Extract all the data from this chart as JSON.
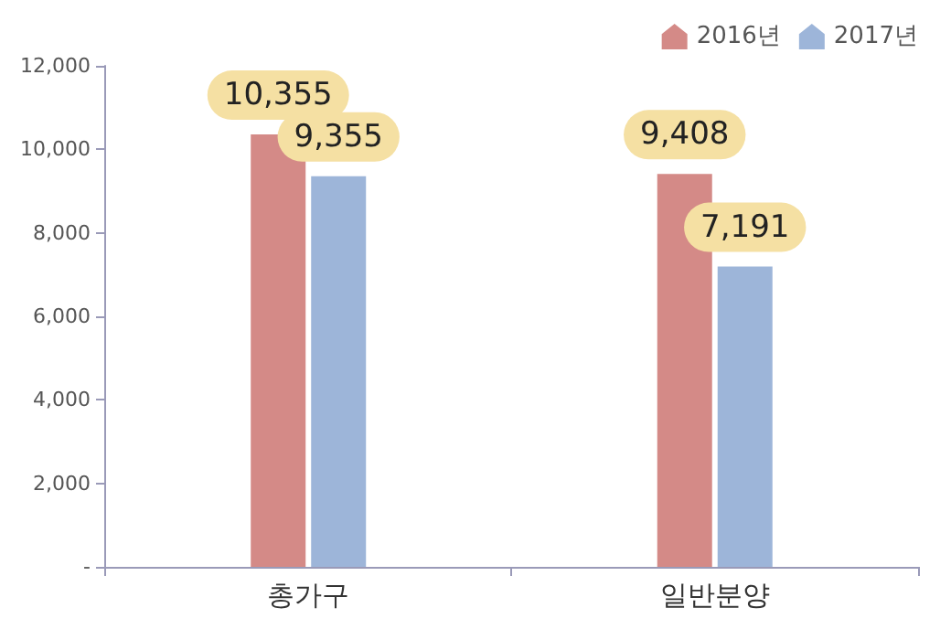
{
  "chart_data": {
    "type": "bar",
    "categories": [
      "총가구",
      "일반분양"
    ],
    "series": [
      {
        "name": "2016년",
        "color": "#d48a87",
        "values": [
          10355,
          9408
        ],
        "value_labels": [
          "10,355",
          "9,408"
        ]
      },
      {
        "name": "2017년",
        "color": "#9db5d9",
        "values": [
          9355,
          7191
        ],
        "value_labels": [
          "9,355",
          "7,191"
        ]
      }
    ],
    "ylim": [
      0,
      12000
    ],
    "yticks": [
      {
        "value": 0,
        "label": "-"
      },
      {
        "value": 2000,
        "label": "2,000"
      },
      {
        "value": 4000,
        "label": "4,000"
      },
      {
        "value": 6000,
        "label": "6,000"
      },
      {
        "value": 8000,
        "label": "8,000"
      },
      {
        "value": 10000,
        "label": "10,000"
      },
      {
        "value": 12000,
        "label": "12,000"
      }
    ],
    "grid": false,
    "legend": "top right"
  }
}
